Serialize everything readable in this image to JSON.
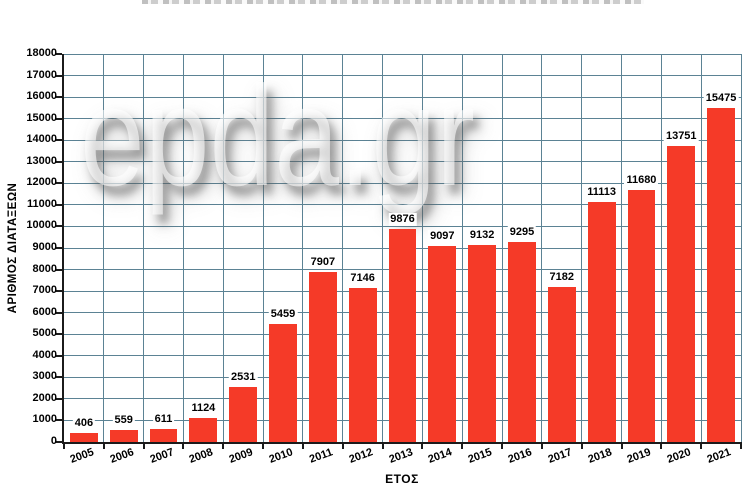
{
  "watermark": {
    "text": "epda.gr"
  },
  "chart_data": {
    "type": "bar",
    "categories": [
      "2005",
      "2006",
      "2007",
      "2008",
      "2009",
      "2010",
      "2011",
      "2012",
      "2013",
      "2014",
      "2015",
      "2016",
      "2017",
      "2018",
      "2019",
      "2020",
      "2021"
    ],
    "values": [
      406,
      559,
      611,
      1124,
      2531,
      5459,
      7907,
      7146,
      9876,
      9097,
      9132,
      9295,
      7182,
      11113,
      11680,
      13751,
      15475
    ],
    "title": "",
    "xlabel": "ΕΤΟΣ",
    "ylabel": "ΑΡΙΘΜΟΣ ΔΙΑΤΑΞΕΩΝ",
    "ylim": [
      0,
      18000
    ],
    "ytick_step": 1000,
    "grid": "on",
    "legend": "none",
    "data_labels": "above-bars",
    "colors": {
      "bar": "#f53a28",
      "grid": "#5b8294",
      "axis": "#1b1b1b",
      "text": "#000000",
      "background": "#ffffff",
      "watermark_shadow": "#8a8a8a"
    }
  }
}
